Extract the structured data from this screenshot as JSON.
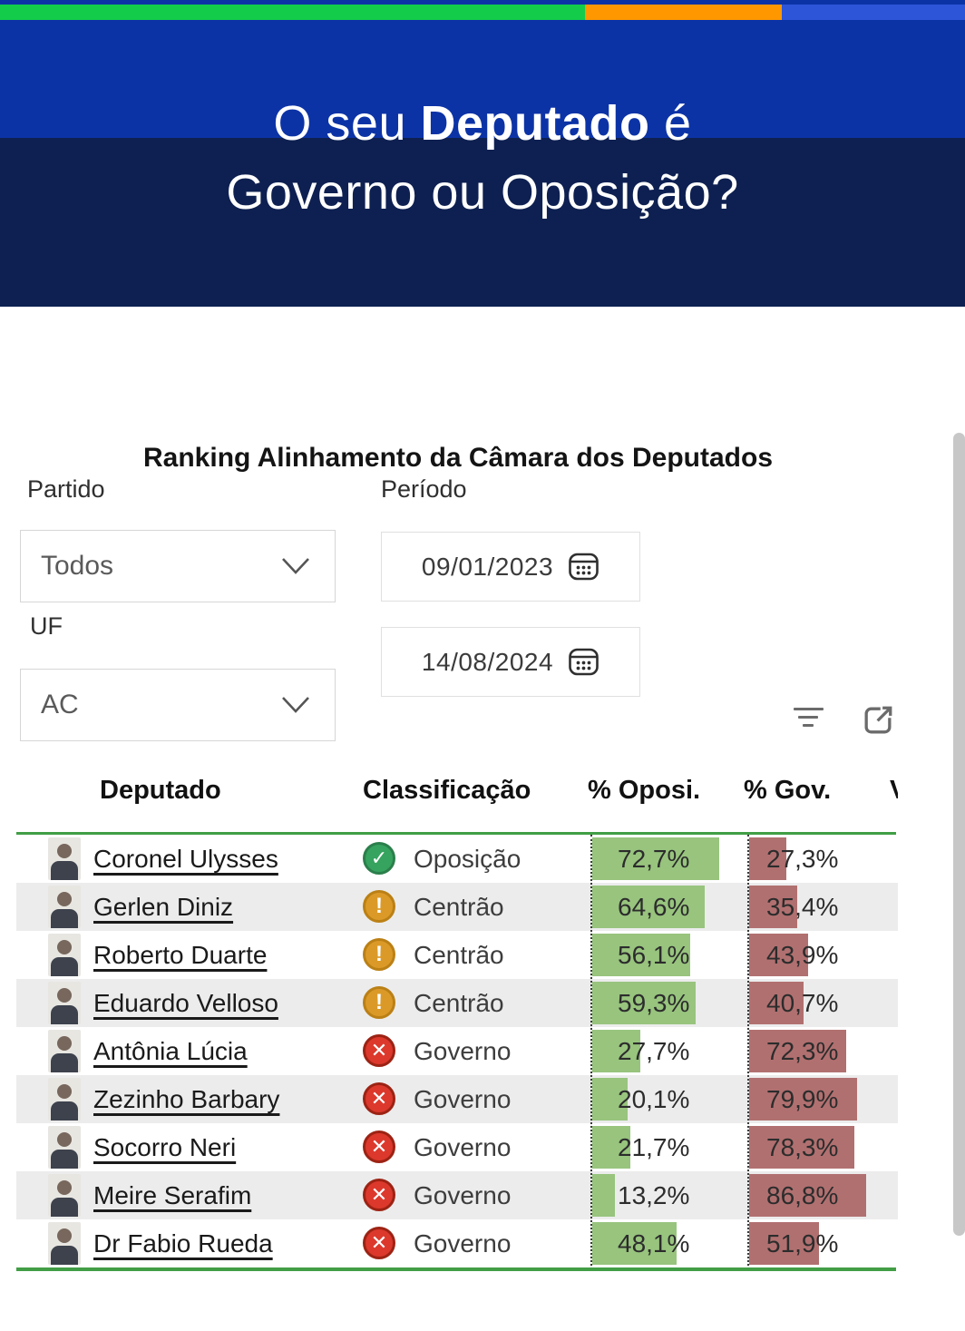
{
  "banner": {
    "title": {
      "pre": "O seu",
      "bold": "Deputado",
      "post": "é",
      "line2": "Governo ou Oposição?"
    }
  },
  "report": {
    "title": "Ranking Alinhamento da Câmara dos Deputados",
    "filters": {
      "partido_label": "Partido",
      "partido_value": "Todos",
      "uf_label": "UF",
      "uf_value": "AC",
      "periodo_label": "Período",
      "date_start": "09/01/2023",
      "date_end": "14/08/2024"
    },
    "toolbar_icons": [
      "filter-icon",
      "focus-mode-icon"
    ]
  },
  "table": {
    "columns": [
      "Deputado",
      "Classificação",
      "% Oposi.",
      "% Gov."
    ],
    "clipped_column_header": "V",
    "rows": [
      {
        "name": "Coronel Ulysses",
        "classification": "Oposição",
        "icon": "check",
        "oposi_label": "72,7%",
        "oposi_value": 72.7,
        "gov_label": "27,3%",
        "gov_value": 27.3
      },
      {
        "name": "Gerlen Diniz",
        "classification": "Centrão",
        "icon": "warn",
        "oposi_label": "64,6%",
        "oposi_value": 64.6,
        "gov_label": "35,4%",
        "gov_value": 35.4
      },
      {
        "name": "Roberto Duarte",
        "classification": "Centrão",
        "icon": "warn",
        "oposi_label": "56,1%",
        "oposi_value": 56.1,
        "gov_label": "43,9%",
        "gov_value": 43.9
      },
      {
        "name": "Eduardo Velloso",
        "classification": "Centrão",
        "icon": "warn",
        "oposi_label": "59,3%",
        "oposi_value": 59.3,
        "gov_label": "40,7%",
        "gov_value": 40.7
      },
      {
        "name": "Antônia Lúcia",
        "classification": "Governo",
        "icon": "cross",
        "oposi_label": "27,7%",
        "oposi_value": 27.7,
        "gov_label": "72,3%",
        "gov_value": 72.3
      },
      {
        "name": "Zezinho Barbary",
        "classification": "Governo",
        "icon": "cross",
        "oposi_label": "20,1%",
        "oposi_value": 20.1,
        "gov_label": "79,9%",
        "gov_value": 79.9
      },
      {
        "name": "Socorro Neri",
        "classification": "Governo",
        "icon": "cross",
        "oposi_label": "21,7%",
        "oposi_value": 21.7,
        "gov_label": "78,3%",
        "gov_value": 78.3
      },
      {
        "name": "Meire Serafim",
        "classification": "Governo",
        "icon": "cross",
        "oposi_label": "13,2%",
        "oposi_value": 13.2,
        "gov_label": "86,8%",
        "gov_value": 86.8
      },
      {
        "name": "Dr Fabio Rueda",
        "classification": "Governo",
        "icon": "cross",
        "oposi_label": "48,1%",
        "oposi_value": 48.1,
        "gov_label": "51,9%",
        "gov_value": 51.9
      }
    ]
  },
  "colors": {
    "banner_top": "#0c33a6",
    "banner_bottom": "#0e2051",
    "strip_green": "#12cc4a",
    "strip_orange": "#ff9800",
    "strip_blue": "#2d55d8",
    "bar_green": "#98c47e",
    "bar_red": "#b17070",
    "line_green": "#419e45",
    "icon_green": "#36a35f",
    "icon_orange": "#db9a28",
    "icon_red": "#dc382c"
  }
}
